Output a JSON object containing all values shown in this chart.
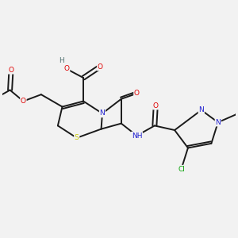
{
  "background_color": "#f2f2f2",
  "bond_color": "#1a1a1a",
  "atom_colors": {
    "O": "#e00000",
    "N": "#2020d0",
    "S": "#c8c800",
    "Cl": "#00a000",
    "H": "#507070",
    "C": "#1a1a1a"
  },
  "figsize": [
    3.0,
    3.0
  ],
  "dpi": 100,
  "lw": 1.4,
  "fs": 6.5
}
